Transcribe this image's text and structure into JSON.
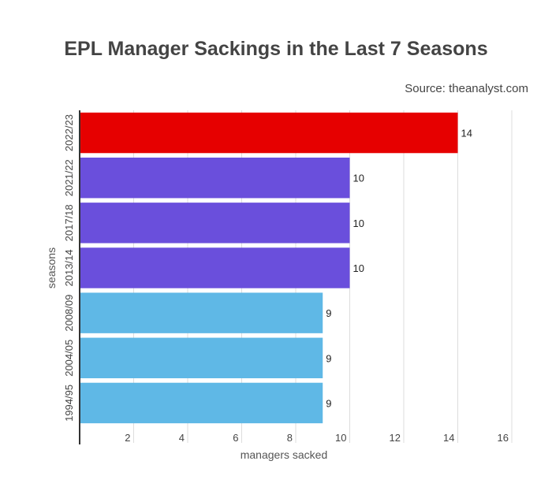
{
  "chart_data": {
    "type": "bar",
    "orientation": "horizontal",
    "title": "EPL Manager Sackings in the Last 7 Seasons",
    "source": "Source: theanalyst.com",
    "xlabel": "managers sacked",
    "ylabel": "seasons",
    "xlim": [
      0,
      16
    ],
    "xticks": [
      2,
      4,
      6,
      8,
      10,
      12,
      14,
      16
    ],
    "grid": true,
    "categories": [
      "2022/23",
      "2021/22",
      "2017/18",
      "2013/14",
      "2008/09",
      "2004/05",
      "1994/95"
    ],
    "values": [
      14,
      10,
      10,
      10,
      9,
      9,
      9
    ],
    "colors": [
      "#e60000",
      "#6a4fdc",
      "#6a4fdc",
      "#6a4fdc",
      "#5fb8e6",
      "#5fb8e6",
      "#5fb8e6"
    ]
  }
}
